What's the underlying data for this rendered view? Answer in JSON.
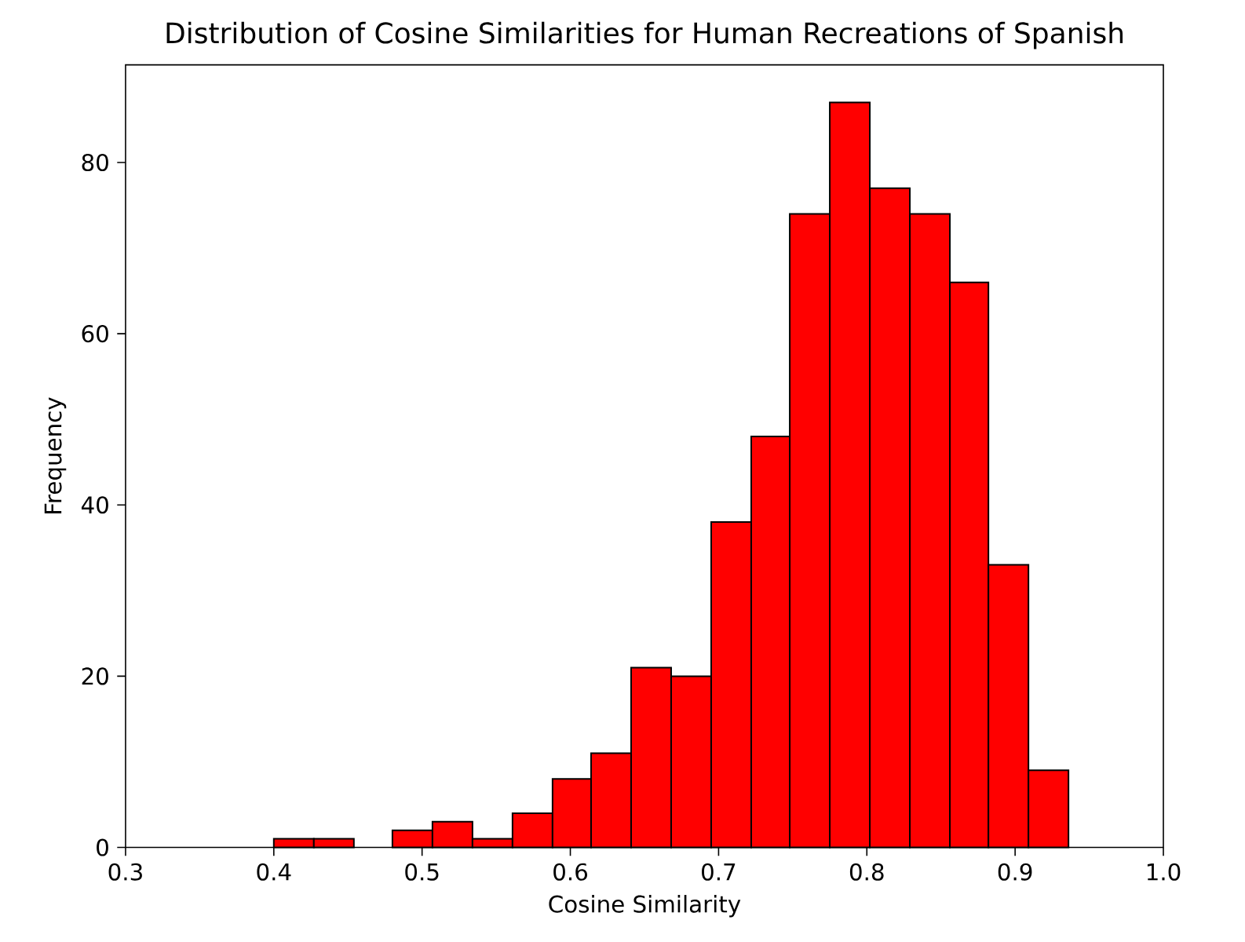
{
  "chart_data": {
    "type": "histogram",
    "title": "Distribution of Cosine Similarities for Human Recreations of Spanish",
    "xlabel": "Cosine Similarity",
    "ylabel": "Frequency",
    "bins": [
      0.4,
      0.427,
      0.454,
      0.48,
      0.507,
      0.534,
      0.561,
      0.588,
      0.614,
      0.641,
      0.668,
      0.695,
      0.722,
      0.748,
      0.775,
      0.802,
      0.829,
      0.856,
      0.882,
      0.909,
      0.936
    ],
    "values": [
      1,
      1,
      0,
      2,
      3,
      1,
      4,
      8,
      11,
      21,
      20,
      38,
      48,
      74,
      87,
      77,
      74,
      66,
      33,
      9
    ],
    "color": "#ff0000",
    "xlim": [
      0.3,
      1.0
    ],
    "ylim": [
      0,
      91.4
    ],
    "xticks": [
      0.3,
      0.4,
      0.5,
      0.6,
      0.7,
      0.8,
      0.9,
      {
        "value": 1.0,
        "label": "1.0"
      }
    ],
    "yticks": [
      0,
      20,
      40,
      60,
      80
    ],
    "grid": false
  }
}
